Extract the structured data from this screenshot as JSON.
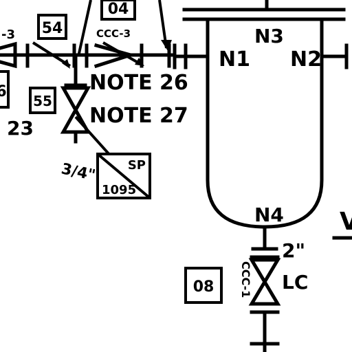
{
  "labels": {
    "tag_04": "04",
    "tag_54": "54",
    "tag_55": "55",
    "tag_08": "08",
    "partial_3_left": "-3",
    "ccc_3": "CCC-3",
    "note_26": "NOTE 26",
    "note_27": "NOTE 27",
    "num_23": "23",
    "three_quarter": "3/4\"",
    "sp_top": "SP",
    "sp_bottom": "1095",
    "n1": "N1",
    "n2": "N2",
    "n3": "N3",
    "n4": "N4",
    "two_inch": "2\"",
    "lc": "LC",
    "ccc_vertical": "CCC-1",
    "partial_left_box": "6",
    "partial_right": "V"
  }
}
